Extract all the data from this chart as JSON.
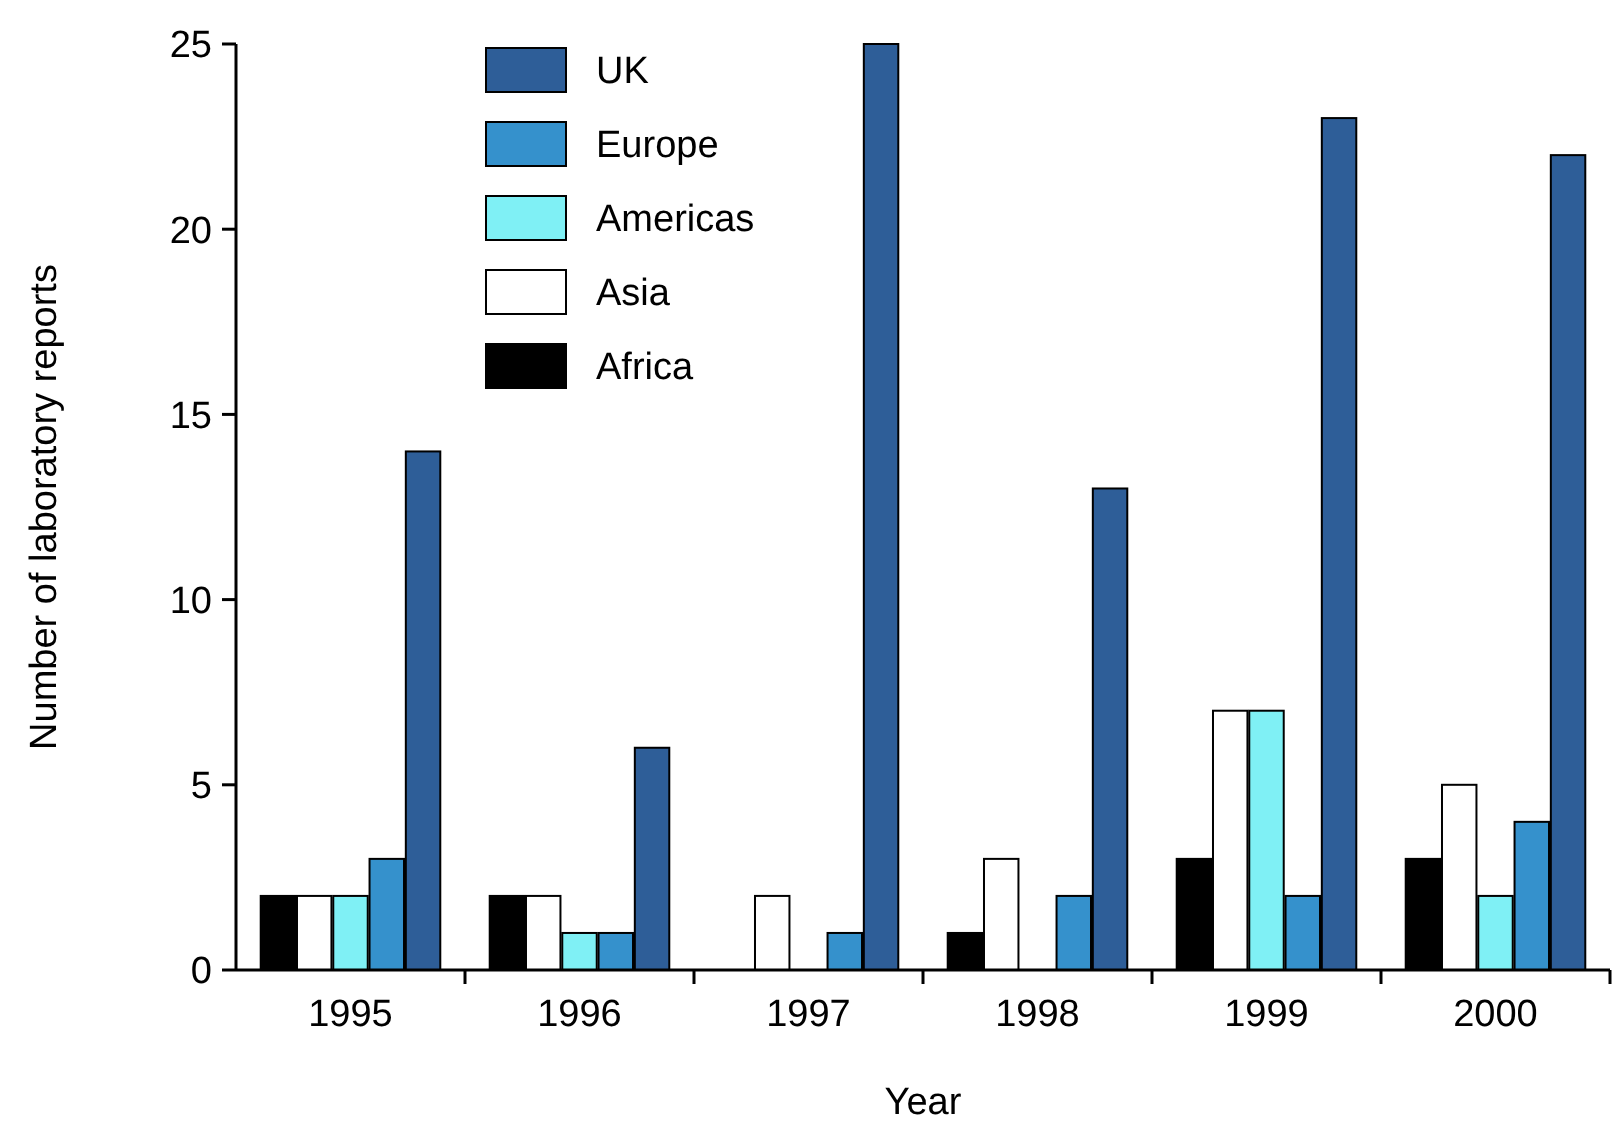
{
  "chart_data": {
    "type": "bar",
    "xlabel": "Year",
    "ylabel": "Number of laboratory reports",
    "categories": [
      "1995",
      "1996",
      "1997",
      "1998",
      "1999",
      "2000"
    ],
    "series": [
      {
        "name": "Africa",
        "color": "#000000",
        "values": [
          2,
          2,
          0,
          1,
          3,
          3
        ]
      },
      {
        "name": "Asia",
        "color": "#ffffff",
        "values": [
          2,
          2,
          2,
          3,
          7,
          5
        ]
      },
      {
        "name": "Americas",
        "color": "#7ff0f5",
        "values": [
          2,
          1,
          0,
          0,
          7,
          2
        ]
      },
      {
        "name": "Europe",
        "color": "#3591cc",
        "values": [
          3,
          1,
          1,
          2,
          2,
          4
        ]
      },
      {
        "name": "UK",
        "color": "#2e5e98",
        "values": [
          14,
          6,
          25,
          13,
          23,
          22
        ]
      }
    ],
    "ylim": [
      0,
      25
    ],
    "yticks": [
      0,
      5,
      10,
      15,
      20,
      25
    ],
    "grid": false,
    "legend": "top left"
  }
}
